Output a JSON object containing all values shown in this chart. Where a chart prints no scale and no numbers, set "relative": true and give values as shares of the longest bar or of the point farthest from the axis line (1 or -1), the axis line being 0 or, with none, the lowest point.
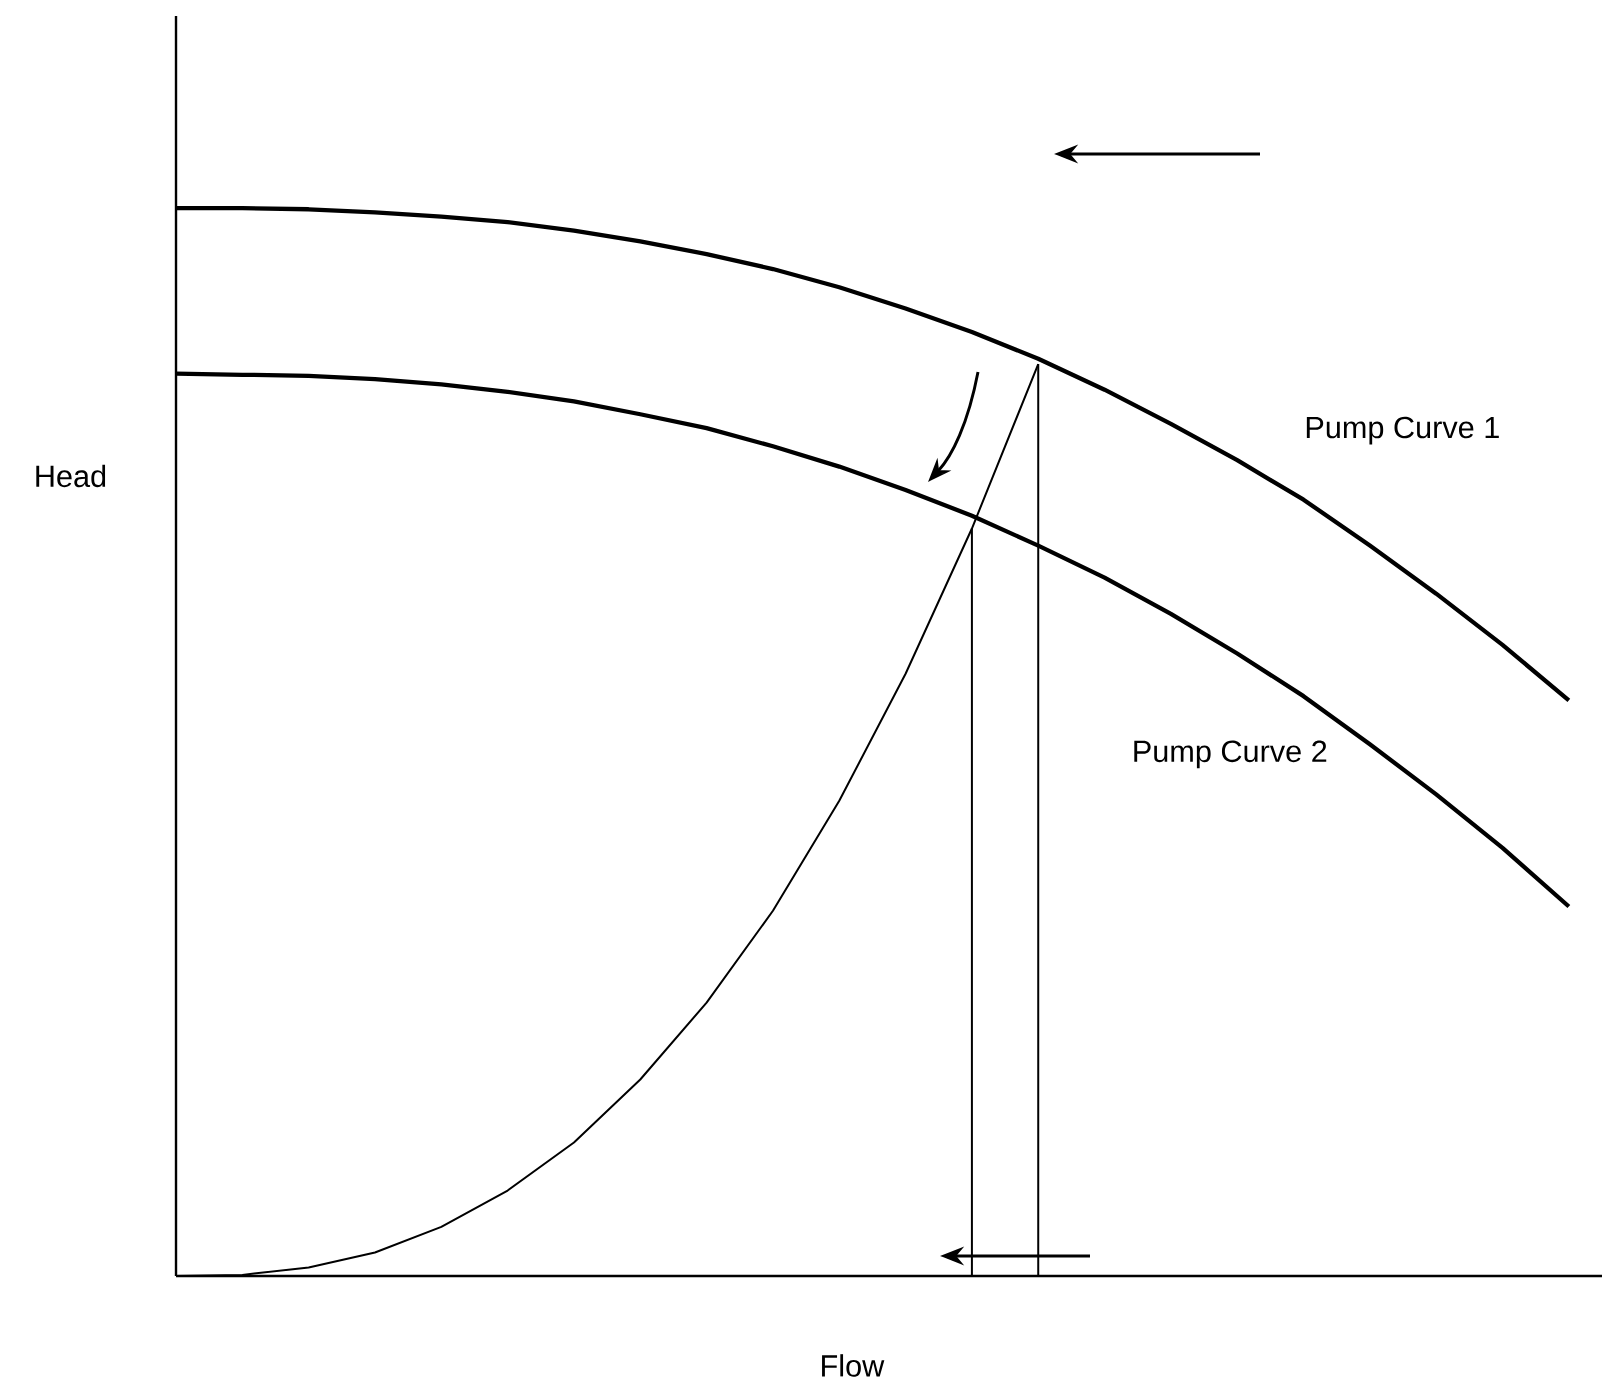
{
  "chart_data": {
    "type": "line",
    "relative": true,
    "xlabel": "Flow",
    "ylabel": "Head",
    "marker": "none",
    "line_style": "solid",
    "categories": [
      null,
      null,
      null,
      null,
      null,
      null,
      null,
      null,
      null,
      null,
      null,
      null,
      null,
      null,
      null,
      null,
      null,
      null,
      null,
      null,
      null,
      null
    ],
    "series": [
      {
        "name": "Pump Curve 1",
        "color": "#000000",
        "values": [
          1.0,
          1.0,
          0.999,
          0.996,
          0.992,
          0.987,
          0.979,
          0.969,
          0.957,
          0.943,
          0.926,
          0.906,
          0.884,
          0.859,
          0.83,
          0.798,
          0.764,
          0.727,
          0.684,
          0.639,
          0.591,
          0.539
        ]
      },
      {
        "name": "Pump Curve 2",
        "color": "#000000",
        "values": [
          0.845,
          0.844,
          0.843,
          0.84,
          0.835,
          0.828,
          0.819,
          0.807,
          0.794,
          0.777,
          0.758,
          0.736,
          0.712,
          0.684,
          0.654,
          0.62,
          0.583,
          0.543,
          0.498,
          0.451,
          0.401,
          0.346
        ]
      },
      {
        "color": "#000000",
        "values": [
          0,
          0.001,
          0.008,
          0.022,
          0.046,
          0.08,
          0.125,
          0.184,
          0.256,
          0.342,
          0.445,
          0.564,
          0.7,
          0.854,
          null,
          null,
          null,
          null,
          null,
          null,
          null,
          null
        ]
      }
    ]
  }
}
